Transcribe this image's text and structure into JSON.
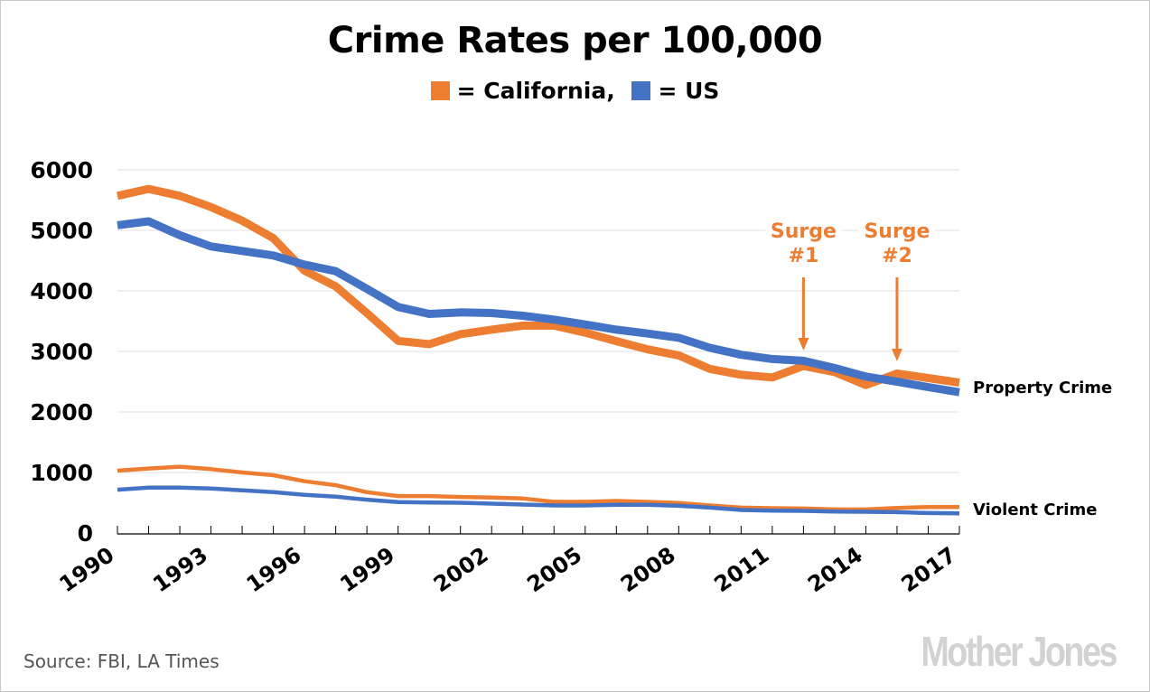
{
  "chart_data": {
    "type": "line",
    "title": "Crime Rates per 100,000",
    "legend": [
      {
        "label": "= California,",
        "color": "#ED7D31"
      },
      {
        "label": "= US",
        "color": "#4472C4"
      }
    ],
    "legend_position": "top-center",
    "xlabel": "",
    "ylabel": "",
    "ylim": [
      0,
      6000
    ],
    "yticks": [
      "0",
      "1000",
      "2000",
      "3000",
      "4000",
      "5000",
      "6000"
    ],
    "ytick_values": [
      0,
      1000,
      2000,
      3000,
      4000,
      5000,
      6000
    ],
    "x": [
      1990,
      1991,
      1992,
      1993,
      1994,
      1995,
      1996,
      1997,
      1998,
      1999,
      2000,
      2001,
      2002,
      2003,
      2004,
      2005,
      2006,
      2007,
      2008,
      2009,
      2010,
      2011,
      2012,
      2013,
      2014,
      2015,
      2016,
      2017
    ],
    "xtick_labels": [
      "1990",
      "1993",
      "1996",
      "1999",
      "2002",
      "2005",
      "2008",
      "2011",
      "2014",
      "2017"
    ],
    "xtick_label_values": [
      1990,
      1993,
      1996,
      1999,
      2002,
      2005,
      2008,
      2011,
      2014,
      2017
    ],
    "grid": true,
    "series": [
      {
        "name": "California Property Crime",
        "group": "property",
        "region": "California",
        "color": "#ED7D31",
        "values": [
          5570,
          5685,
          5570,
          5385,
          5160,
          4870,
          4335,
          4075,
          3635,
          3175,
          3120,
          3285,
          3360,
          3425,
          3425,
          3310,
          3170,
          3035,
          2935,
          2710,
          2615,
          2570,
          2760,
          2660,
          2445,
          2635,
          2560,
          2485
        ]
      },
      {
        "name": "US Property Crime",
        "group": "property",
        "region": "US",
        "color": "#4472C4",
        "values": [
          5085,
          5150,
          4920,
          4735,
          4660,
          4585,
          4435,
          4325,
          4035,
          3735,
          3620,
          3645,
          3635,
          3590,
          3525,
          3445,
          3360,
          3295,
          3225,
          3060,
          2945,
          2875,
          2845,
          2725,
          2585,
          2500,
          2410,
          2325
        ]
      },
      {
        "name": "California Violent Crime",
        "group": "violent",
        "region": "California",
        "color": "#ED7D31",
        "values": [
          1030,
          1065,
          1095,
          1055,
          1000,
          955,
          855,
          790,
          675,
          610,
          610,
          595,
          585,
          570,
          515,
          515,
          530,
          515,
          495,
          455,
          420,
          410,
          405,
          390,
          390,
          415,
          430,
          430
        ]
      },
      {
        "name": "US Violent Crime",
        "group": "violent",
        "region": "US",
        "color": "#4472C4",
        "values": [
          715,
          750,
          750,
          735,
          705,
          675,
          630,
          600,
          550,
          510,
          505,
          500,
          485,
          470,
          455,
          455,
          465,
          465,
          450,
          420,
          380,
          370,
          365,
          355,
          350,
          345,
          330,
          325
        ]
      }
    ],
    "series_labels": [
      {
        "text": "Property Crime",
        "anchor_series": 0
      },
      {
        "text": "Violent Crime",
        "anchor_series": 2
      }
    ],
    "annotations": [
      {
        "line1": "Surge",
        "line2": "#1",
        "year": 2012,
        "color": "#ED7D31"
      },
      {
        "line1": "Surge",
        "line2": "#2",
        "year": 2015,
        "color": "#ED7D31"
      }
    ]
  },
  "footer": {
    "source": "Source: FBI, LA Times",
    "brand": "Mother Jones"
  }
}
